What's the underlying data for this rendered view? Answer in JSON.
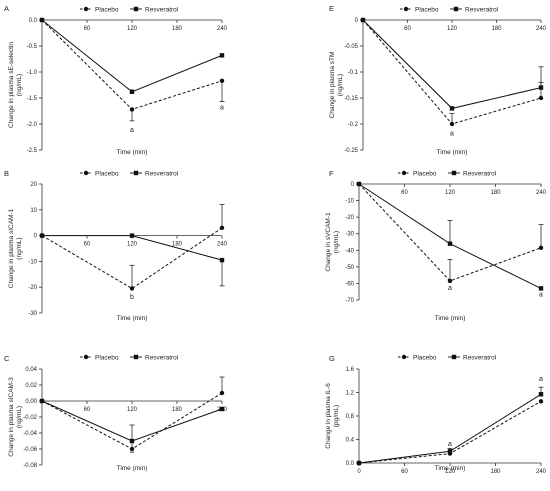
{
  "legend": {
    "placebo": "Placebo",
    "resveratrol": "Resveratrol"
  },
  "chart_data": [
    {
      "panel": "A",
      "type": "line",
      "x": [
        0,
        120,
        240
      ],
      "xticks": [
        60,
        120,
        180,
        240
      ],
      "xlabel": "Time (min)",
      "ylabel": [
        "Change in plasma sE-selectin",
        "(ng/mL)"
      ],
      "ylim": [
        -2.5,
        0
      ],
      "yticks": [
        0,
        -0.5,
        -1,
        -1.5,
        -2,
        -2.5
      ],
      "ytick_labels": [
        "0.0",
        "-0.5",
        "-1.0",
        "-1.5",
        "-2.0",
        "-2.5"
      ],
      "series": [
        {
          "name": "Placebo",
          "values": [
            0,
            -1.72,
            -1.17
          ],
          "errors": [
            0,
            0.22,
            0.4
          ],
          "style": "dashed",
          "marker": "circle"
        },
        {
          "name": "Resveratrol",
          "values": [
            0,
            -1.38,
            -0.68
          ],
          "errors": [
            0,
            0,
            0
          ],
          "style": "solid",
          "marker": "square"
        }
      ],
      "annotations": [
        {
          "text": "a",
          "x": 120,
          "y": -2.15
        },
        {
          "text": "a",
          "x": 240,
          "y": -1.72
        }
      ]
    },
    {
      "panel": "B",
      "type": "line",
      "x": [
        0,
        120,
        240
      ],
      "xticks": [
        60,
        120,
        180,
        240
      ],
      "xlabel": "Time (min)",
      "ylabel": [
        "Change in plasma sICAM-1",
        "(ng/mL)"
      ],
      "ylim": [
        -30,
        20
      ],
      "yticks": [
        20,
        10,
        0,
        -10,
        -20,
        -30
      ],
      "ytick_labels": [
        "20",
        "10",
        "0",
        "-10",
        "-20",
        "-30"
      ],
      "series": [
        {
          "name": "Placebo",
          "values": [
            0,
            -20.5,
            3
          ],
          "errors": [
            0,
            9,
            9
          ],
          "style": "dashed",
          "marker": "circle"
        },
        {
          "name": "Resveratrol",
          "values": [
            0,
            0,
            -9.5
          ],
          "errors": [
            0,
            0,
            10
          ],
          "style": "solid",
          "marker": "square"
        }
      ],
      "annotations": [
        {
          "text": "b",
          "x": 120,
          "y": -24.5
        }
      ]
    },
    {
      "panel": "C",
      "type": "line",
      "x": [
        0,
        120,
        240
      ],
      "xticks": [
        60,
        120,
        180,
        240
      ],
      "xlabel": "Time (min)",
      "ylabel": [
        "Change in plasma sICAM-3",
        "(ng/mL)"
      ],
      "ylim": [
        -0.08,
        0.04
      ],
      "yticks": [
        0.04,
        0.02,
        0,
        -0.02,
        -0.04,
        -0.06,
        -0.08
      ],
      "ytick_labels": [
        "0.04",
        "0.02",
        "0.00",
        "-0.02",
        "-0.04",
        "-0.06",
        "-0.08"
      ],
      "series": [
        {
          "name": "Placebo",
          "values": [
            0,
            -0.06,
            0.01
          ],
          "errors": [
            0,
            0.03,
            0.02
          ],
          "style": "dashed",
          "marker": "circle"
        },
        {
          "name": "Resveratrol",
          "values": [
            0,
            -0.05,
            -0.01
          ],
          "errors": [
            0,
            0,
            0
          ],
          "style": "solid",
          "marker": "square"
        }
      ],
      "annotations": [
        {
          "text": "a",
          "x": 120,
          "y": -0.065
        }
      ]
    },
    {
      "panel": "E",
      "type": "line",
      "x": [
        0,
        120,
        240
      ],
      "xticks": [
        60,
        120,
        180,
        240
      ],
      "xlabel": "Time (min)",
      "ylabel": [
        "Change in plasma sTM",
        "(ng/mL)"
      ],
      "ylim": [
        -0.25,
        0
      ],
      "yticks": [
        0,
        -0.05,
        -0.1,
        -0.15,
        -0.2,
        -0.25
      ],
      "ytick_labels": [
        "0",
        "-0.05",
        "-0.1",
        "-0.15",
        "-0.2",
        "-0.25"
      ],
      "series": [
        {
          "name": "Placebo",
          "values": [
            0,
            -0.2,
            -0.15
          ],
          "errors": [
            0,
            0.02,
            0.03
          ],
          "style": "dashed",
          "marker": "circle"
        },
        {
          "name": "Resveratrol",
          "values": [
            0,
            -0.17,
            -0.13
          ],
          "errors": [
            0,
            0,
            0.04
          ],
          "style": "solid",
          "marker": "square"
        }
      ],
      "annotations": [
        {
          "text": "a",
          "x": 120,
          "y": -0.222
        }
      ]
    },
    {
      "panel": "F",
      "type": "line",
      "x": [
        0,
        120,
        240
      ],
      "xticks": [
        60,
        120,
        180,
        240
      ],
      "xlabel": "Time (min)",
      "ylabel": [
        "Change in sVCAM-1",
        "(ng/mL)"
      ],
      "ylim": [
        -70,
        0
      ],
      "yticks": [
        0,
        -10,
        -20,
        -30,
        -40,
        -50,
        -60,
        -70
      ],
      "ytick_labels": [
        "0",
        "-10",
        "-20",
        "-30",
        "-40",
        "-50",
        "-60",
        "-70"
      ],
      "series": [
        {
          "name": "Placebo",
          "values": [
            0,
            -58.5,
            -38.5
          ],
          "errors": [
            0,
            13,
            14
          ],
          "style": "dashed",
          "marker": "circle"
        },
        {
          "name": "Resveratrol",
          "values": [
            0,
            -36,
            -63
          ],
          "errors": [
            0,
            14,
            0
          ],
          "style": "solid",
          "marker": "square"
        }
      ],
      "annotations": [
        {
          "text": "a",
          "x": 120,
          "y": -64
        },
        {
          "text": "a",
          "x": 240,
          "y": -68
        }
      ]
    },
    {
      "panel": "G",
      "type": "line",
      "x": [
        0,
        120,
        240
      ],
      "xticks": [
        0,
        60,
        120,
        180,
        240
      ],
      "xlabel": "Time (min)",
      "ylabel": [
        "Change in plasma IL-6",
        "(pg/mL)"
      ],
      "ylim": [
        0,
        1.6
      ],
      "yticks": [
        0,
        0.4,
        0.8,
        1.2,
        1.6
      ],
      "ytick_labels": [
        "0.0",
        "0.4",
        "0.8",
        "1.2",
        "1.6"
      ],
      "series": [
        {
          "name": "Placebo",
          "values": [
            0,
            0.16,
            1.05
          ],
          "errors": [
            0,
            0,
            0
          ],
          "style": "dashed",
          "marker": "circle"
        },
        {
          "name": "Resveratrol",
          "values": [
            0,
            0.2,
            1.17
          ],
          "errors": [
            0,
            0.05,
            0.12
          ],
          "style": "solid",
          "marker": "square"
        }
      ],
      "annotations": [
        {
          "text": "a",
          "x": 120,
          "y": 0.29
        },
        {
          "text": "a",
          "x": 240,
          "y": 1.4
        }
      ]
    }
  ]
}
